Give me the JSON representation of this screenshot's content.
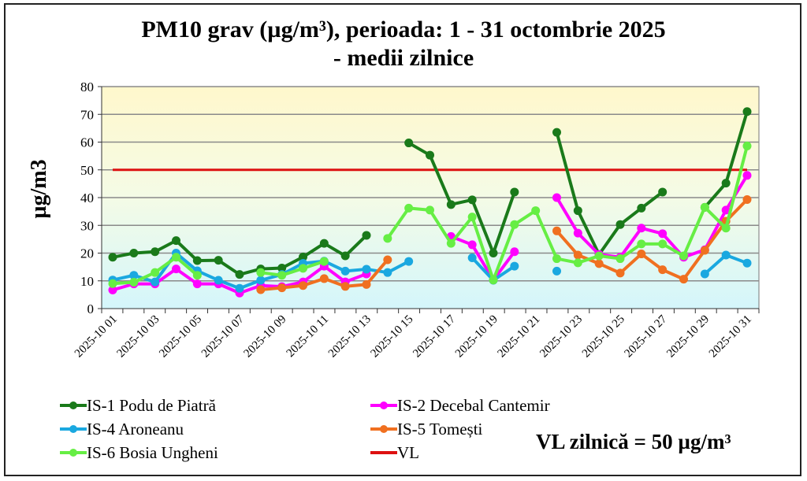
{
  "chart_data": {
    "type": "line",
    "title_line1": "PM10 grav (µg/m³), perioada: 1 - 31 octombrie 2025",
    "title_line2": "- medii zilnice",
    "ylabel": "µg/m3",
    "xlabel": "",
    "ylim": [
      0,
      80
    ],
    "yticks": [
      "0",
      "10",
      "20",
      "30",
      "40",
      "50",
      "60",
      "70",
      "80"
    ],
    "grid": true,
    "x": [
      "2025-10 01",
      "2025-10 02",
      "2025-10 03",
      "2025-10 04",
      "2025-10 05",
      "2025-10 06",
      "2025-10 07",
      "2025-10 08",
      "2025-10 09",
      "2025-10 10",
      "2025-10 11",
      "2025-10 12",
      "2025-10 13",
      "2025-10 14",
      "2025-10 15",
      "2025-10 16",
      "2025-10 17",
      "2025-10 18",
      "2025-10 19",
      "2025-10 20",
      "2025-10 21",
      "2025-10 22",
      "2025-10 23",
      "2025-10 24",
      "2025-10 25",
      "2025-10 26",
      "2025-10 27",
      "2025-10 28",
      "2025-10 29",
      "2025-10 30",
      "2025-10 31"
    ],
    "xtick_labels": [
      "2025-10 01",
      "2025-10 03",
      "2025-10 05",
      "2025-10 07",
      "2025-10 09",
      "2025-10 11",
      "2025-10 13",
      "2025-10 15",
      "2025-10 17",
      "2025-10 19",
      "2025-10 21",
      "2025-10 23",
      "2025-10 25",
      "2025-10 27",
      "2025-10 29",
      "2025-10 31"
    ],
    "series": [
      {
        "name": "IS-1 Podu de Piatră",
        "color": "#1a7a1a",
        "values": [
          18.5,
          20,
          20.5,
          24.5,
          17.3,
          17.4,
          12.3,
          14.3,
          14.6,
          18.6,
          23.5,
          19,
          26.4,
          null,
          59.7,
          55.3,
          37.5,
          39.2,
          20,
          42,
          null,
          63.5,
          35.3,
          19.5,
          30.3,
          36.2,
          42,
          null,
          36.5,
          45.2,
          71
        ]
      },
      {
        "name": "IS-2 Decebal Cantemir",
        "color": "#ff00ff",
        "values": [
          6.7,
          8.9,
          8.9,
          14.3,
          8.9,
          8.9,
          5.6,
          8.3,
          7.9,
          9.6,
          15.3,
          9.6,
          12.5,
          null,
          null,
          null,
          26,
          23,
          10.3,
          20.5,
          null,
          40,
          27.2,
          19.5,
          18.5,
          29,
          27,
          18.5,
          21.2,
          35.5,
          48
        ]
      },
      {
        "name": "IS-4 Aroneanu",
        "color": "#1aa8e0",
        "values": [
          10.3,
          12,
          9.6,
          20,
          13.6,
          10.2,
          7.3,
          10.2,
          12.3,
          16.3,
          17.1,
          13.5,
          14.2,
          13,
          17,
          null,
          null,
          18.3,
          10.2,
          15.3,
          null,
          13.5,
          null,
          null,
          null,
          null,
          null,
          null,
          12.5,
          19.3,
          16.4
        ]
      },
      {
        "name": "IS-5 Tomești",
        "color": "#f07020",
        "values": [
          null,
          null,
          null,
          null,
          null,
          null,
          null,
          6.8,
          7.5,
          8.3,
          10.8,
          8,
          8.7,
          17.6,
          null,
          null,
          null,
          null,
          null,
          null,
          null,
          28,
          19.3,
          16.2,
          12.8,
          19.7,
          14,
          10.6,
          21,
          31.5,
          39.3
        ]
      },
      {
        "name": "IS-6 Bosia Ungheni",
        "color": "#66ee44",
        "values": [
          9,
          9.5,
          13,
          18.5,
          12,
          null,
          null,
          13,
          12,
          14.5,
          17,
          null,
          null,
          25.3,
          36.2,
          35.5,
          23.5,
          33,
          10.3,
          30.3,
          35.3,
          18,
          16.5,
          19,
          18,
          23.3,
          23.3,
          19,
          36.5,
          29,
          58.6
        ]
      },
      {
        "name": "VL",
        "color": "#dd1111",
        "values": [
          50,
          50,
          50,
          50,
          50,
          50,
          50,
          50,
          50,
          50,
          50,
          50,
          50,
          50,
          50,
          50,
          50,
          50,
          50,
          50,
          50,
          50,
          50,
          50,
          50,
          50,
          50,
          50,
          50,
          50,
          50
        ],
        "marker": false
      }
    ],
    "legend_position": "bottom",
    "annotation": "VL zilnică = 50 µg/m³"
  }
}
